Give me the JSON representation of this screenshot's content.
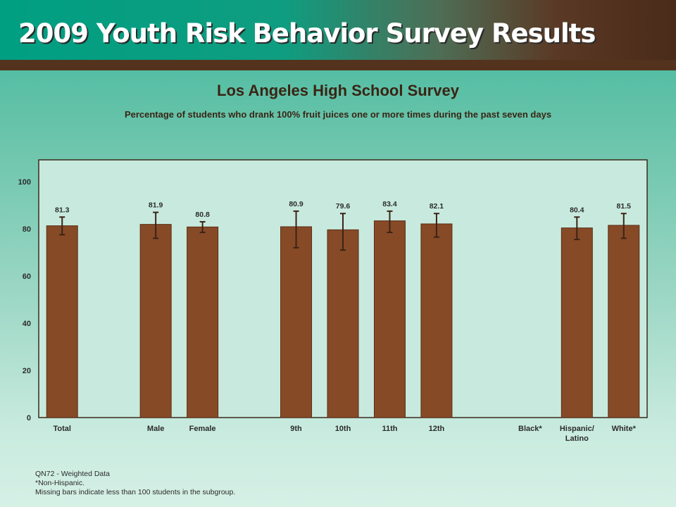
{
  "header": {
    "title": "2009 Youth Risk Behavior Survey Results"
  },
  "colors": {
    "bar": "#874a27",
    "bar_stroke": "#5a2e15",
    "plot_bg": "#c8eade",
    "plot_border": "#3b2a1e",
    "error_bar": "#3b2416",
    "text": "#2b2b2b"
  },
  "chart_data": {
    "type": "bar",
    "title": "Los Angeles High School Survey",
    "subtitle": "Percentage of students who drank 100% fruit juices one or more times during the past seven days",
    "xlabel": "",
    "ylabel": "",
    "ylim": [
      0,
      110
    ],
    "yticks": [
      0,
      20,
      40,
      60,
      80,
      100
    ],
    "grid": false,
    "categories": [
      "Total",
      "",
      "Male",
      "Female",
      "",
      "9th",
      "10th",
      "11th",
      "12th",
      "",
      "Black*",
      "Hispanic/ Latino",
      "White*"
    ],
    "category_lines": [
      [
        "Total"
      ],
      [],
      [
        "Male"
      ],
      [
        "Female"
      ],
      [],
      [
        "9th"
      ],
      [
        "10th"
      ],
      [
        "11th"
      ],
      [
        "12th"
      ],
      [],
      [
        "Black*"
      ],
      [
        "Hispanic/",
        "Latino"
      ],
      [
        "White*"
      ]
    ],
    "values": [
      81.3,
      null,
      81.9,
      80.8,
      null,
      80.9,
      79.6,
      83.4,
      82.1,
      null,
      null,
      80.4,
      81.5
    ],
    "value_labels": [
      "81.3",
      "",
      "81.9",
      "80.8",
      "",
      "80.9",
      "79.6",
      "83.4",
      "82.1",
      "",
      "",
      "80.4",
      "81.5"
    ],
    "ci_low": [
      77.5,
      null,
      76.0,
      78.5,
      null,
      72.0,
      71.0,
      78.5,
      76.5,
      null,
      null,
      75.5,
      76.0
    ],
    "ci_high": [
      85.0,
      null,
      87.0,
      83.0,
      null,
      87.5,
      86.5,
      87.5,
      86.5,
      null,
      null,
      85.0,
      86.5
    ]
  },
  "footnotes": [
    "QN72 - Weighted Data",
    "*Non-Hispanic.",
    "Missing bars indicate less than 100 students in the subgroup."
  ]
}
